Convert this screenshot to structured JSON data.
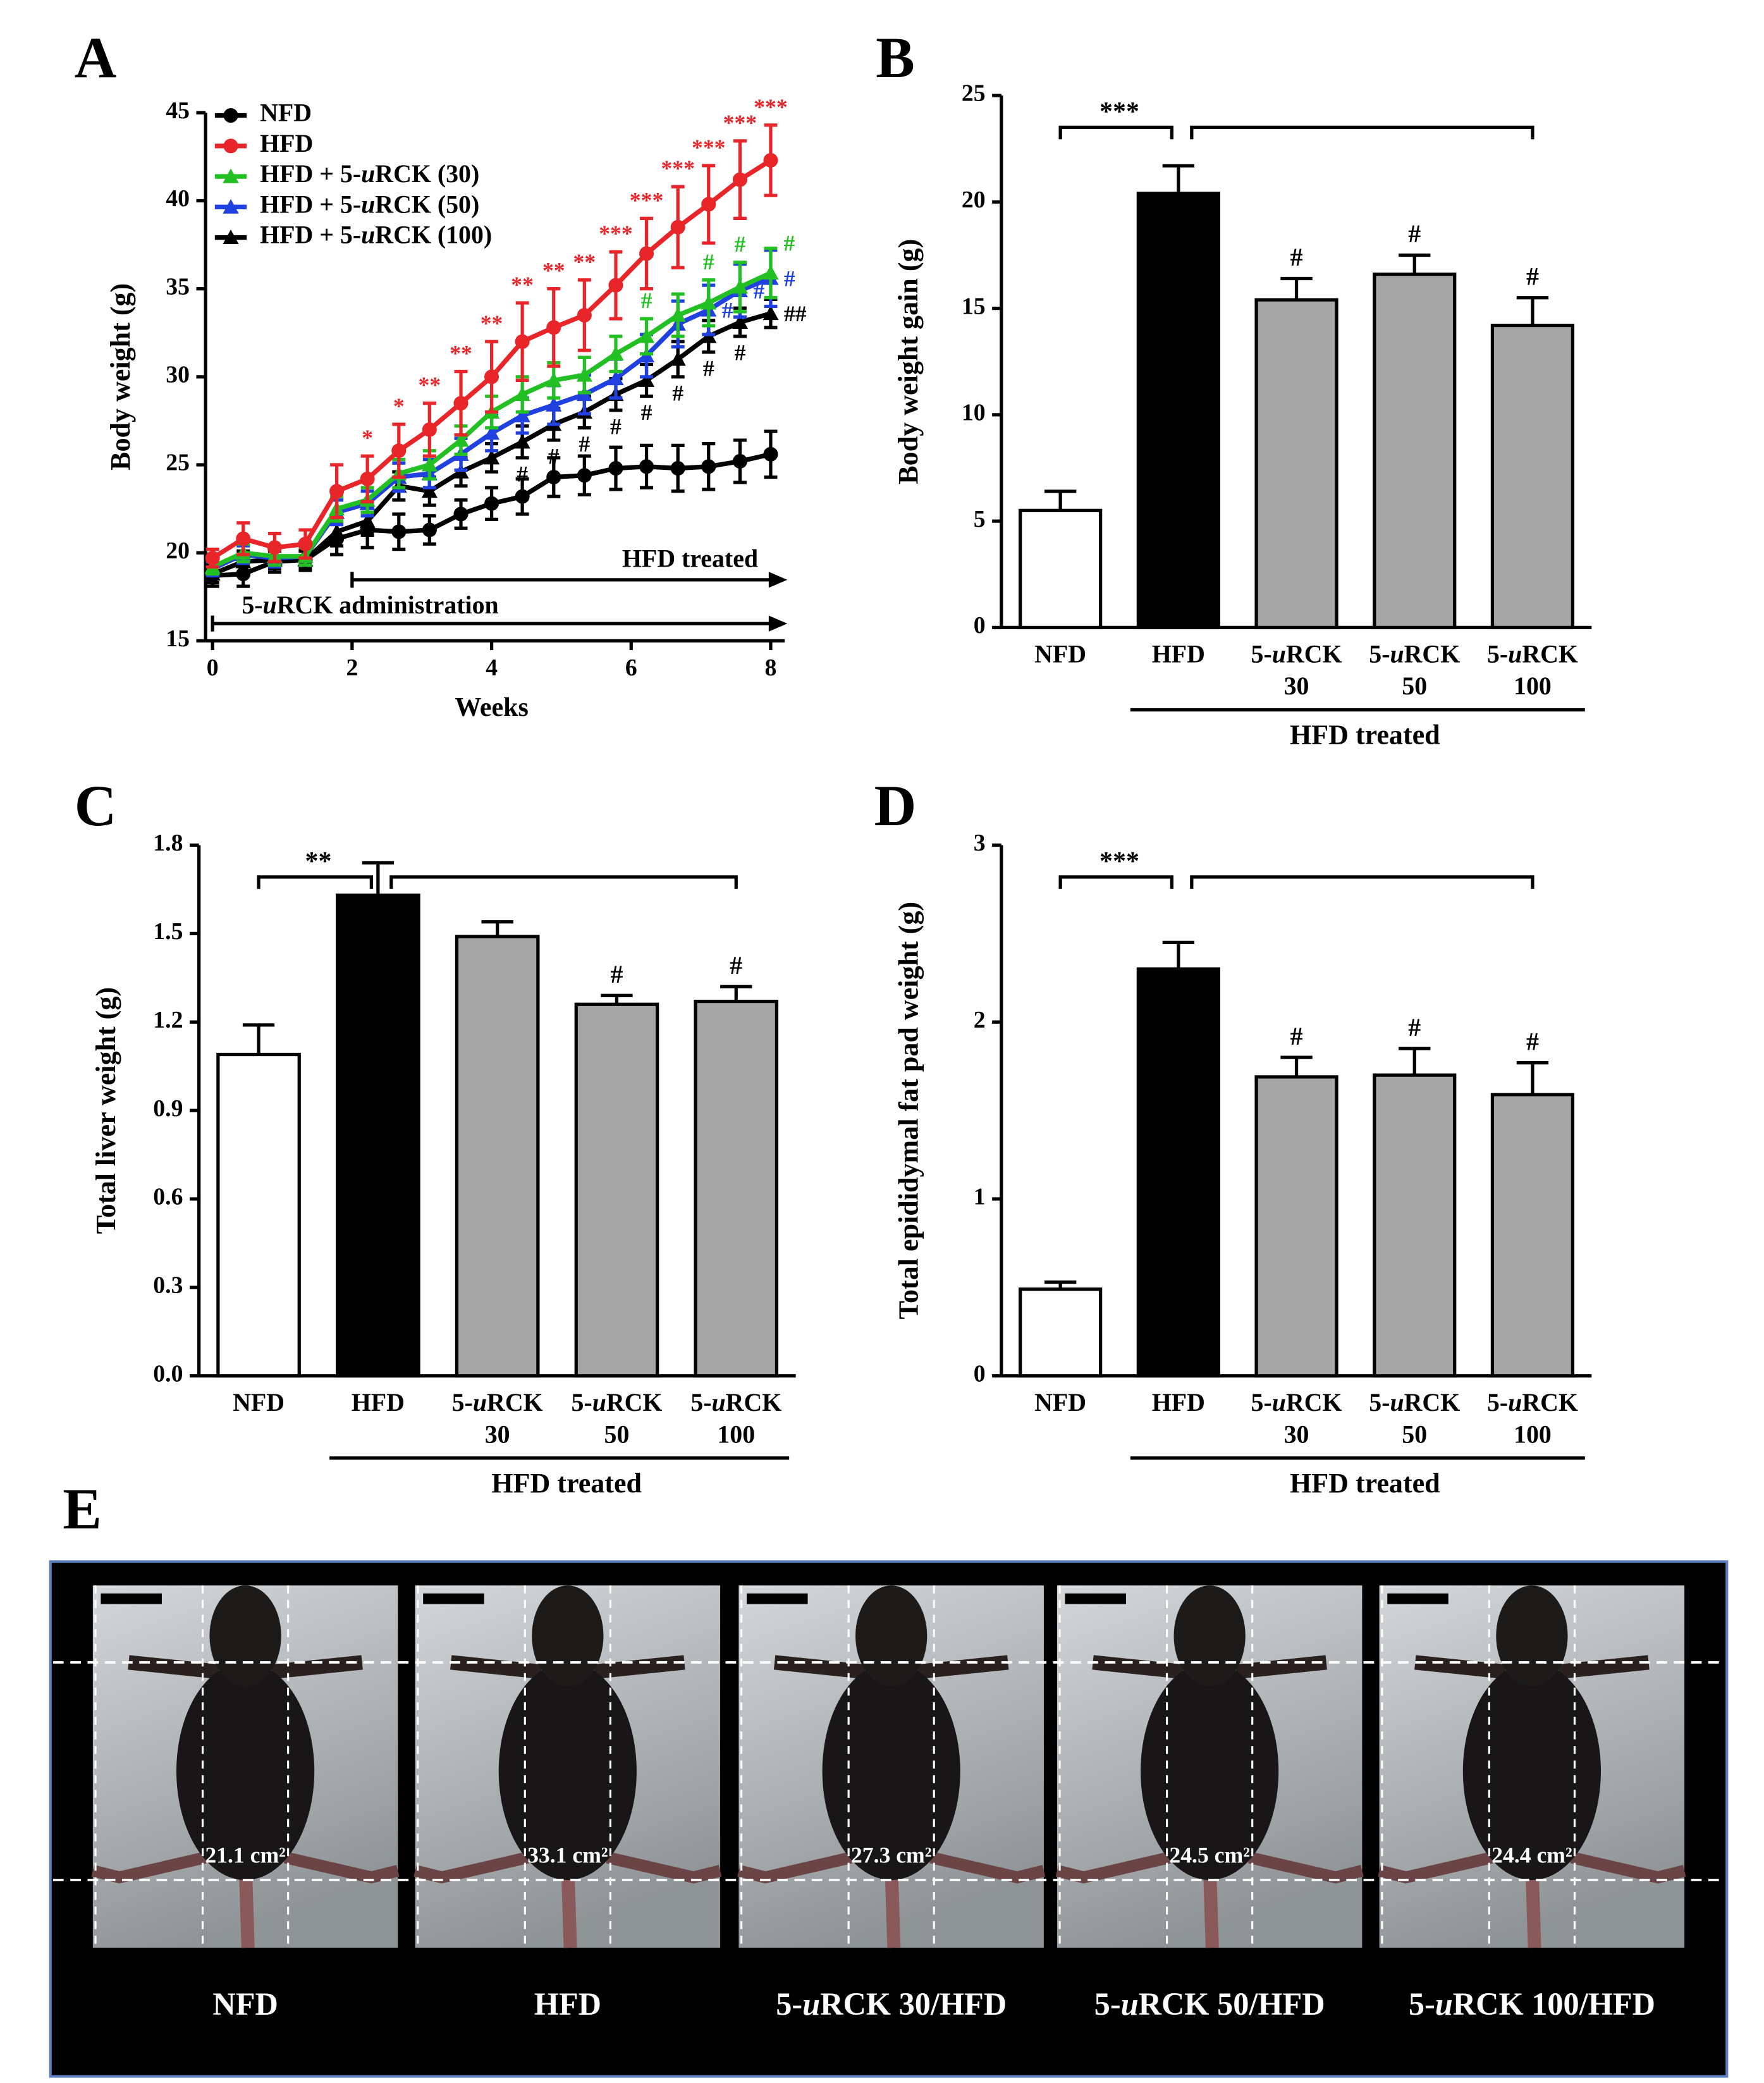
{
  "chart_data": [
    {
      "type": "line",
      "panel_label": "A",
      "ylabel": "Body weight (g)",
      "xlabel": "Weeks",
      "xlim": [
        -0.1,
        8.2
      ],
      "xticks": [
        0,
        2,
        4,
        6,
        8
      ],
      "ylim": [
        15,
        45
      ],
      "yticks": [
        15,
        20,
        25,
        30,
        35,
        40,
        45
      ],
      "x": [
        0,
        0.44,
        0.89,
        1.33,
        1.78,
        2.22,
        2.67,
        3.11,
        3.56,
        4,
        4.44,
        4.89,
        5.33,
        5.78,
        6.22,
        6.67,
        7.11,
        7.56,
        8
      ],
      "series": [
        {
          "name": "NFD",
          "color": "#000000",
          "marker": "circle",
          "values": [
            18.7,
            18.8,
            19.5,
            19.6,
            20.8,
            21.3,
            21.2,
            21.3,
            22.2,
            22.8,
            23.2,
            24.3,
            24.4,
            24.8,
            24.9,
            24.8,
            24.9,
            25.2,
            25.6
          ],
          "errors": [
            0.6,
            0.7,
            0.6,
            0.6,
            0.9,
            1,
            1,
            0.8,
            0.8,
            0.9,
            1,
            1.1,
            1.1,
            1.2,
            1.2,
            1.3,
            1.3,
            1.2,
            1.3
          ]
        },
        {
          "name": "HFD",
          "color": "#e8262a",
          "marker": "circle",
          "values": [
            19.7,
            20.8,
            20.3,
            20.5,
            23.5,
            24.2,
            25.8,
            27,
            28.5,
            30,
            32,
            32.8,
            33.5,
            35.2,
            37,
            38.5,
            39.8,
            41.2,
            42.3
          ],
          "errors": [
            0.5,
            0.9,
            0.8,
            0.8,
            1.5,
            1.3,
            1.5,
            1.5,
            1.8,
            2,
            2.2,
            2.2,
            2,
            1.9,
            2,
            2.3,
            2.2,
            2.2,
            2
          ],
          "annotations": [
            null,
            null,
            null,
            null,
            null,
            "*",
            "*",
            "**",
            "**",
            "**",
            "**",
            "**",
            "**",
            "***",
            "***",
            "***",
            "***",
            "***",
            "***"
          ]
        },
        {
          "name": "HFD + 5-uRCK (30)",
          "color": "#22c022",
          "marker": "triangle",
          "values": [
            19.2,
            20,
            19.8,
            19.8,
            22.5,
            23,
            24.5,
            25,
            26.4,
            28,
            29,
            29.8,
            30.1,
            31.3,
            32.3,
            33.5,
            34.2,
            35.1,
            35.9
          ],
          "errors": [
            0.4,
            0.5,
            0.5,
            0.5,
            0.7,
            0.7,
            0.8,
            0.8,
            0.8,
            0.9,
            1,
            1,
            1,
            1,
            1,
            1.2,
            1.3,
            1.4,
            1.4
          ],
          "annotations": [
            null,
            null,
            null,
            null,
            null,
            null,
            null,
            null,
            null,
            null,
            null,
            null,
            null,
            null,
            "#",
            null,
            "#",
            "#",
            "#"
          ]
        },
        {
          "name": "HFD + 5-uRCK (50)",
          "color": "#2040e0",
          "marker": "triangle",
          "values": [
            19.1,
            19.9,
            19.7,
            19.8,
            22.3,
            22.8,
            24.3,
            24.5,
            25.6,
            26.8,
            27.8,
            28.4,
            29,
            29.9,
            31.2,
            33,
            33.8,
            34.9,
            35.6
          ],
          "errors": [
            0.4,
            0.5,
            0.5,
            0.5,
            0.7,
            0.7,
            0.8,
            0.8,
            0.9,
            1,
            1,
            1.1,
            1.1,
            1.1,
            1.2,
            1.3,
            1.4,
            1.5,
            1.6
          ],
          "annotations": [
            null,
            null,
            null,
            null,
            null,
            null,
            null,
            null,
            null,
            null,
            null,
            null,
            null,
            null,
            null,
            null,
            "#",
            "#",
            "#"
          ]
        },
        {
          "name": "HFD + 5-uRCK (100)",
          "color": "#000000",
          "marker": "triangle",
          "values": [
            18.8,
            19.5,
            19.6,
            19.6,
            21.2,
            21.8,
            23.8,
            23.5,
            24.6,
            25.4,
            26.3,
            27.3,
            28,
            29,
            29.8,
            31,
            32.3,
            33.1,
            33.6
          ],
          "errors": [
            0.5,
            0.6,
            0.5,
            0.5,
            0.8,
            0.8,
            0.8,
            0.8,
            0.8,
            0.8,
            0.9,
            0.9,
            0.9,
            0.9,
            0.9,
            1,
            0.9,
            0.8,
            0.8
          ],
          "annotations": [
            null,
            null,
            null,
            null,
            null,
            null,
            null,
            null,
            null,
            null,
            "#",
            "#",
            "#",
            "#",
            "#",
            "#",
            "#",
            "#",
            "##"
          ]
        }
      ],
      "arrows": [
        {
          "text": "HFD treated",
          "start": 2
        },
        {
          "text": "5-uRCK administration",
          "start": 0
        }
      ]
    },
    {
      "type": "bar",
      "panel_label": "B",
      "ylabel": "Body weight gain (g)",
      "categories": [
        [
          "NFD"
        ],
        [
          "HFD"
        ],
        [
          "5-uRCK",
          "30"
        ],
        [
          "5-uRCK",
          "50"
        ],
        [
          "5-uRCK",
          "100"
        ]
      ],
      "values": [
        5.5,
        20.4,
        15.4,
        16.6,
        14.2
      ],
      "errors": [
        0.9,
        1.3,
        1.0,
        0.9,
        1.3
      ],
      "colors": [
        "#ffffff",
        "#000000",
        "#a6a6a6",
        "#a6a6a6",
        "#a6a6a6"
      ],
      "annotations": [
        null,
        null,
        "#",
        "#",
        "#"
      ],
      "significance": "***",
      "group_label": "HFD treated",
      "ylim": [
        0,
        25
      ],
      "yticks": [
        0,
        5,
        10,
        15,
        20,
        25
      ]
    },
    {
      "type": "bar",
      "panel_label": "C",
      "ylabel": "Total liver weight (g)",
      "categories": [
        [
          "NFD"
        ],
        [
          "HFD"
        ],
        [
          "5-uRCK",
          "30"
        ],
        [
          "5-uRCK",
          "50"
        ],
        [
          "5-uRCK",
          "100"
        ]
      ],
      "values": [
        1.09,
        1.63,
        1.49,
        1.26,
        1.27
      ],
      "errors": [
        0.1,
        0.11,
        0.05,
        0.03,
        0.05
      ],
      "colors": [
        "#ffffff",
        "#000000",
        "#a6a6a6",
        "#a6a6a6",
        "#a6a6a6"
      ],
      "annotations": [
        null,
        null,
        null,
        "#",
        "#"
      ],
      "significance": "**",
      "group_label": "HFD treated",
      "ylim": [
        0,
        1.8
      ],
      "yticks": [
        {
          "value": 0,
          "label": "0.0"
        },
        0.3,
        0.6,
        0.9,
        1.2,
        1.5,
        1.8
      ]
    },
    {
      "type": "bar",
      "panel_label": "D",
      "ylabel": "Total epididymal fat pad weight (g)",
      "categories": [
        [
          "NFD"
        ],
        [
          "HFD"
        ],
        [
          "5-uRCK",
          "30"
        ],
        [
          "5-uRCK",
          "50"
        ],
        [
          "5-uRCK",
          "100"
        ]
      ],
      "values": [
        0.49,
        2.3,
        1.69,
        1.7,
        1.59
      ],
      "errors": [
        0.04,
        0.15,
        0.11,
        0.15,
        0.18
      ],
      "colors": [
        "#ffffff",
        "#000000",
        "#a6a6a6",
        "#a6a6a6",
        "#a6a6a6"
      ],
      "annotations": [
        null,
        null,
        "#",
        "#",
        "#"
      ],
      "significance": "***",
      "group_label": "HFD treated",
      "ylim": [
        0,
        3
      ],
      "yticks": [
        0,
        1,
        2,
        3
      ]
    }
  ],
  "photo_panel": {
    "panel_label": "E",
    "photos": [
      {
        "area": "21.1 cm²",
        "caption": "NFD"
      },
      {
        "area": "33.1 cm²",
        "caption": "HFD"
      },
      {
        "area": "27.3 cm²",
        "caption": "5-uRCK 30/HFD"
      },
      {
        "area": "24.5 cm²",
        "caption": "5-uRCK 50/HFD"
      },
      {
        "area": "24.4 cm²",
        "caption": "5-uRCK 100/HFD"
      }
    ]
  }
}
